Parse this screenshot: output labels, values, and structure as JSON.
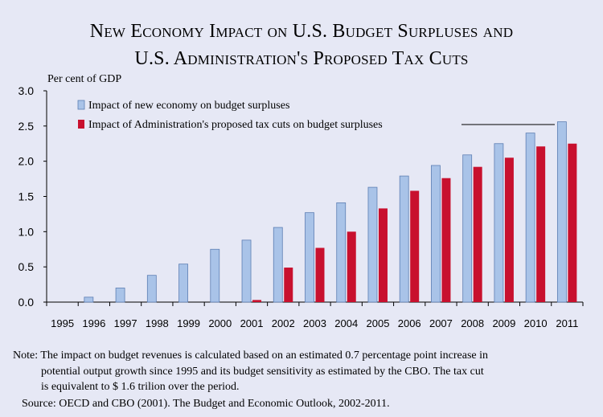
{
  "title_line1": "New Economy Impact on U.S. Budget Surpluses and",
  "title_line2": "U.S. Administration's Proposed Tax Cuts",
  "note_line1": "Note: The impact on budget revenues is calculated based on an estimated 0.7 percentage point increase in",
  "note_line2": "potential output growth since 1995 and its budget sensitivity as estimated by the CBO. The tax cut",
  "note_line3": "is equivalent to $ 1.6 trilion over the period.",
  "source": "Source: OECD and CBO (2001). The Budget and Economic Outlook, 2002-2011.",
  "colors": {
    "background": "#e6e8f5",
    "new_economy_fill": "#a9c3e8",
    "new_economy_stroke": "#5d7eb3",
    "tax_cuts_fill": "#c8102e"
  },
  "chart_data": {
    "type": "bar",
    "ylabel": "Per cent of GDP",
    "ylim": [
      0,
      3.0
    ],
    "yticks": [
      "0.0",
      "0.5",
      "1.0",
      "1.5",
      "2.0",
      "2.5",
      "3.0"
    ],
    "grid": false,
    "legend_position": "top-left",
    "categories": [
      "1995",
      "1996",
      "1997",
      "1998",
      "1999",
      "2000",
      "2001",
      "2002",
      "2003",
      "2004",
      "2005",
      "2006",
      "2007",
      "2008",
      "2009",
      "2010",
      "2011"
    ],
    "series": [
      {
        "name": "Impact of new economy on budget surpluses",
        "values": [
          0,
          0.07,
          0.2,
          0.38,
          0.54,
          0.75,
          0.88,
          1.06,
          1.27,
          1.41,
          1.63,
          1.79,
          1.94,
          2.09,
          2.25,
          2.4,
          2.56
        ]
      },
      {
        "name": "Impact of Administration's proposed tax cuts on budget surpluses",
        "values": [
          0,
          0,
          0,
          0,
          0,
          0,
          0.03,
          0.49,
          0.77,
          1.0,
          1.33,
          1.58,
          1.76,
          1.92,
          2.05,
          2.21,
          2.25
        ]
      }
    ]
  }
}
